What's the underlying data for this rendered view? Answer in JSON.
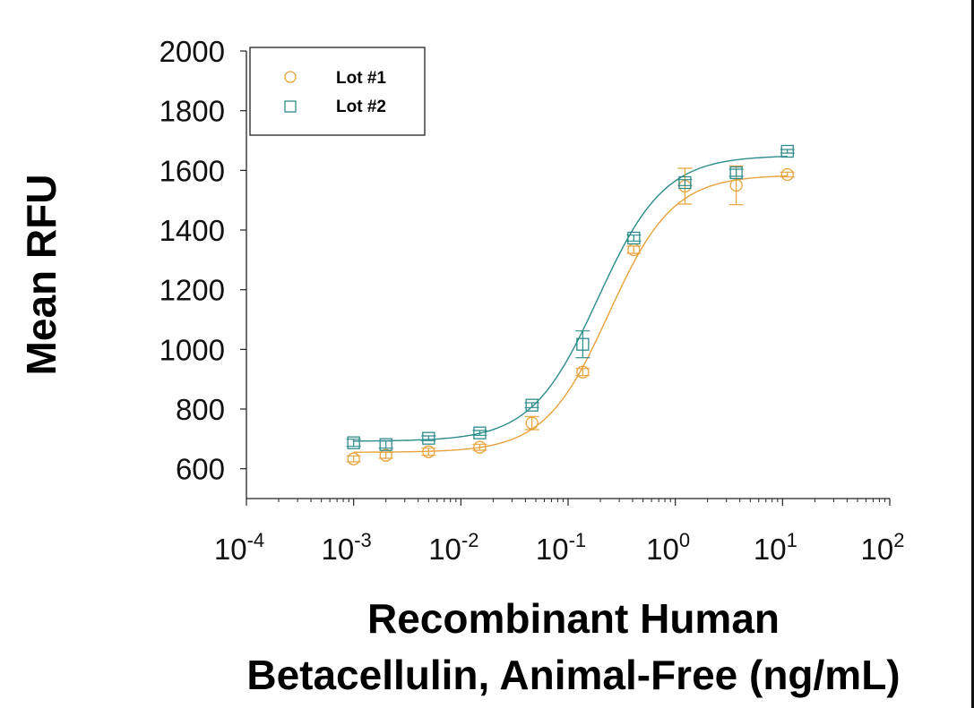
{
  "chart_data": {
    "type": "scatter",
    "title": "",
    "xlabel_lines": [
      "Recombinant Human",
      "Betacellulin, Animal-Free (ng/mL)"
    ],
    "ylabel": "Mean RFU",
    "xscale": "log",
    "xlim": [
      0.0001,
      100
    ],
    "ylim": [
      500,
      2000
    ],
    "xticks": [
      {
        "base": "10",
        "exp": "-4",
        "value": 0.0001
      },
      {
        "base": "10",
        "exp": "-3",
        "value": 0.001
      },
      {
        "base": "10",
        "exp": "-2",
        "value": 0.01
      },
      {
        "base": "10",
        "exp": "-1",
        "value": 0.1
      },
      {
        "base": "10",
        "exp": "0",
        "value": 1
      },
      {
        "base": "10",
        "exp": "1",
        "value": 10
      },
      {
        "base": "10",
        "exp": "2",
        "value": 100
      }
    ],
    "yticks": [
      600,
      800,
      1000,
      1200,
      1400,
      1600,
      1800,
      2000
    ],
    "grid": false,
    "legend": "top-left",
    "x": [
      0.001,
      0.002,
      0.005,
      0.015,
      0.046,
      0.137,
      0.41,
      1.23,
      3.7,
      11.1
    ],
    "series": [
      {
        "name": "Lot #1",
        "marker": "circle",
        "color": "#E8A33C",
        "values": [
          633,
          645,
          657,
          672,
          753,
          924,
          1334,
          1547,
          1550,
          1586
        ],
        "errors": [
          10,
          10,
          12,
          10,
          22,
          12,
          12,
          60,
          65,
          8
        ],
        "fit": {
          "bottom": 655,
          "top": 1585,
          "ec50": 0.24,
          "hill": 1.45
        }
      },
      {
        "name": "Lot #2",
        "marker": "square",
        "color": "#2E8B8B",
        "values": [
          687,
          681,
          702,
          720,
          813,
          1017,
          1373,
          1559,
          1592,
          1664
        ],
        "errors": [
          12,
          12,
          8,
          8,
          8,
          45,
          10,
          10,
          12,
          6
        ],
        "fit": {
          "bottom": 692,
          "top": 1650,
          "ec50": 0.19,
          "hill": 1.4
        }
      }
    ]
  }
}
